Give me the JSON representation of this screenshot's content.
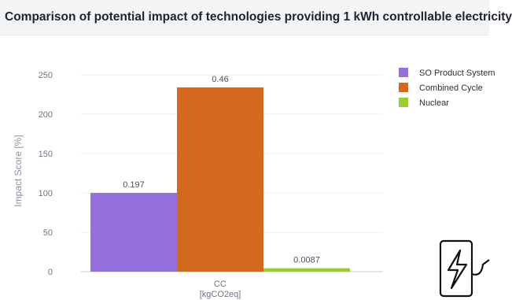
{
  "page": {
    "title": "Comparison of potential impact of technologies providing 1 kWh controllable electricity"
  },
  "chart_data": {
    "type": "bar",
    "title": "Comparison of potential impact of technologies providing 1 kWh controllable electricity",
    "categories": [
      "CC"
    ],
    "category_sublabel": "[kgCO2eq]",
    "ylabel": "Impact Score [%]",
    "ylim": [
      0,
      260
    ],
    "yticks": [
      0,
      50,
      100,
      150,
      200,
      250
    ],
    "grid": true,
    "legend_position": "right",
    "series": [
      {
        "name": "SO Product System",
        "values": [
          100
        ],
        "label": "0.197",
        "color": "#9370db"
      },
      {
        "name": "Combined Cycle",
        "values": [
          234
        ],
        "label": "0.46",
        "color": "#d2691e"
      },
      {
        "name": "Nuclear",
        "values": [
          4.4
        ],
        "label": "0.0087",
        "color": "#9acd32"
      }
    ]
  },
  "decor": {
    "icon": "electric-charger-icon"
  }
}
